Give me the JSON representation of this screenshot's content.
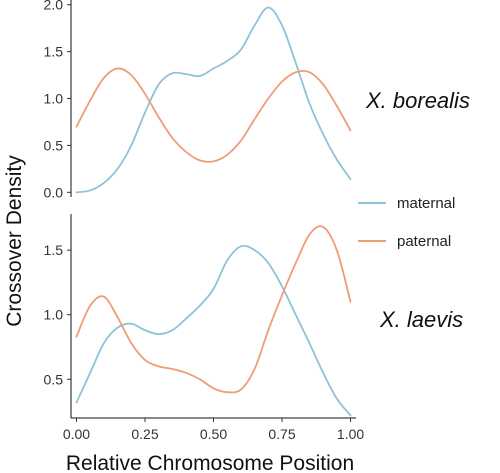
{
  "chart_data": {
    "type": "line",
    "xlabel": "Relative Chromosome Position",
    "ylabel": "Crossover Density",
    "x_ticks": [
      "0.00",
      "0.25",
      "0.50",
      "0.75",
      "1.00"
    ],
    "x_tick_values": [
      0,
      0.25,
      0.5,
      0.75,
      1.0
    ],
    "xlim": [
      -0.02,
      1.02
    ],
    "legend": {
      "placement": "right",
      "entries": [
        {
          "name": "maternal",
          "color": "#8fc2d9"
        },
        {
          "name": "paternal",
          "color": "#ee9d76"
        }
      ]
    },
    "panels": [
      {
        "label": "X. borealis",
        "ylim": [
          -0.05,
          2.05
        ],
        "y_ticks": [
          "0.0",
          "0.5",
          "1.0",
          "1.5",
          "2.0"
        ],
        "y_tick_values": [
          0,
          0.5,
          1.0,
          1.5,
          2.0
        ],
        "series": [
          {
            "name": "maternal",
            "color": "#8fc2d9",
            "x": [
              0.0,
              0.05,
              0.1,
              0.15,
              0.2,
              0.25,
              0.3,
              0.35,
              0.4,
              0.45,
              0.5,
              0.55,
              0.6,
              0.65,
              0.7,
              0.75,
              0.8,
              0.85,
              0.9,
              0.95,
              1.0
            ],
            "y": [
              0.0,
              0.02,
              0.1,
              0.25,
              0.5,
              0.85,
              1.15,
              1.27,
              1.26,
              1.24,
              1.32,
              1.4,
              1.52,
              1.78,
              1.97,
              1.78,
              1.38,
              0.95,
              0.62,
              0.35,
              0.14
            ]
          },
          {
            "name": "paternal",
            "color": "#ee9d76",
            "x": [
              0.0,
              0.05,
              0.1,
              0.15,
              0.2,
              0.25,
              0.3,
              0.35,
              0.4,
              0.45,
              0.5,
              0.55,
              0.6,
              0.65,
              0.7,
              0.75,
              0.8,
              0.85,
              0.9,
              0.95,
              1.0
            ],
            "y": [
              0.7,
              0.98,
              1.22,
              1.32,
              1.25,
              1.05,
              0.8,
              0.58,
              0.43,
              0.34,
              0.33,
              0.4,
              0.55,
              0.78,
              1.0,
              1.18,
              1.28,
              1.28,
              1.15,
              0.92,
              0.66
            ]
          }
        ]
      },
      {
        "label": "X. laevis",
        "ylim": [
          0.2,
          1.78
        ],
        "y_ticks": [
          "0.5",
          "1.0",
          "1.5"
        ],
        "y_tick_values": [
          0.5,
          1.0,
          1.5
        ],
        "series": [
          {
            "name": "maternal",
            "color": "#8fc2d9",
            "x": [
              0.0,
              0.05,
              0.1,
              0.15,
              0.2,
              0.25,
              0.3,
              0.35,
              0.4,
              0.45,
              0.5,
              0.55,
              0.6,
              0.65,
              0.7,
              0.75,
              0.8,
              0.85,
              0.9,
              0.95,
              1.0
            ],
            "y": [
              0.32,
              0.55,
              0.78,
              0.9,
              0.93,
              0.88,
              0.85,
              0.88,
              0.97,
              1.07,
              1.2,
              1.42,
              1.53,
              1.5,
              1.4,
              1.22,
              1.0,
              0.78,
              0.55,
              0.35,
              0.22
            ]
          },
          {
            "name": "paternal",
            "color": "#ee9d76",
            "x": [
              0.0,
              0.05,
              0.1,
              0.15,
              0.2,
              0.25,
              0.3,
              0.35,
              0.4,
              0.45,
              0.5,
              0.55,
              0.6,
              0.65,
              0.7,
              0.75,
              0.8,
              0.85,
              0.9,
              0.95,
              1.0
            ],
            "y": [
              0.83,
              1.07,
              1.14,
              0.98,
              0.78,
              0.65,
              0.6,
              0.58,
              0.55,
              0.5,
              0.43,
              0.4,
              0.42,
              0.58,
              0.88,
              1.15,
              1.4,
              1.62,
              1.68,
              1.5,
              1.1
            ]
          }
        ]
      }
    ]
  }
}
